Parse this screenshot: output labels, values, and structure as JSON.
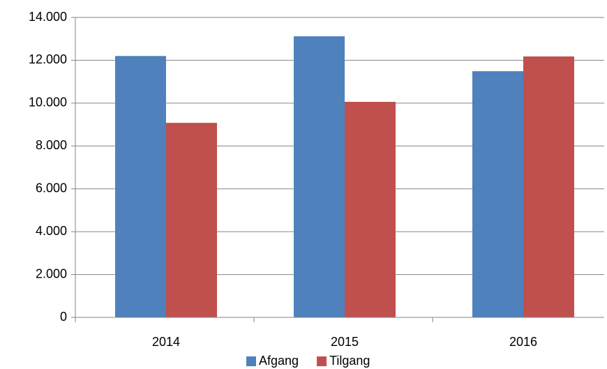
{
  "chart_data": {
    "type": "bar",
    "categories": [
      "2014",
      "2015",
      "2016"
    ],
    "series": [
      {
        "name": "Afgang",
        "color": "#4f81bd",
        "values": [
          12200,
          13120,
          11490
        ]
      },
      {
        "name": "Tilgang",
        "color": "#c0504d",
        "values": [
          9080,
          10060,
          12180
        ]
      }
    ],
    "ylim": [
      0,
      14000
    ],
    "yticks": [
      0,
      {
        "value": 2000,
        "label": "2.000"
      },
      {
        "value": 4000,
        "label": "4.000"
      },
      {
        "value": 6000,
        "label": "6.000"
      },
      {
        "value": 8000,
        "label": "8.000"
      },
      {
        "value": 10000,
        "label": "10.000"
      },
      {
        "value": 12000,
        "label": "12.000"
      },
      {
        "value": 14000,
        "label": "14.000"
      }
    ],
    "grid": true,
    "legend": "bottom"
  }
}
